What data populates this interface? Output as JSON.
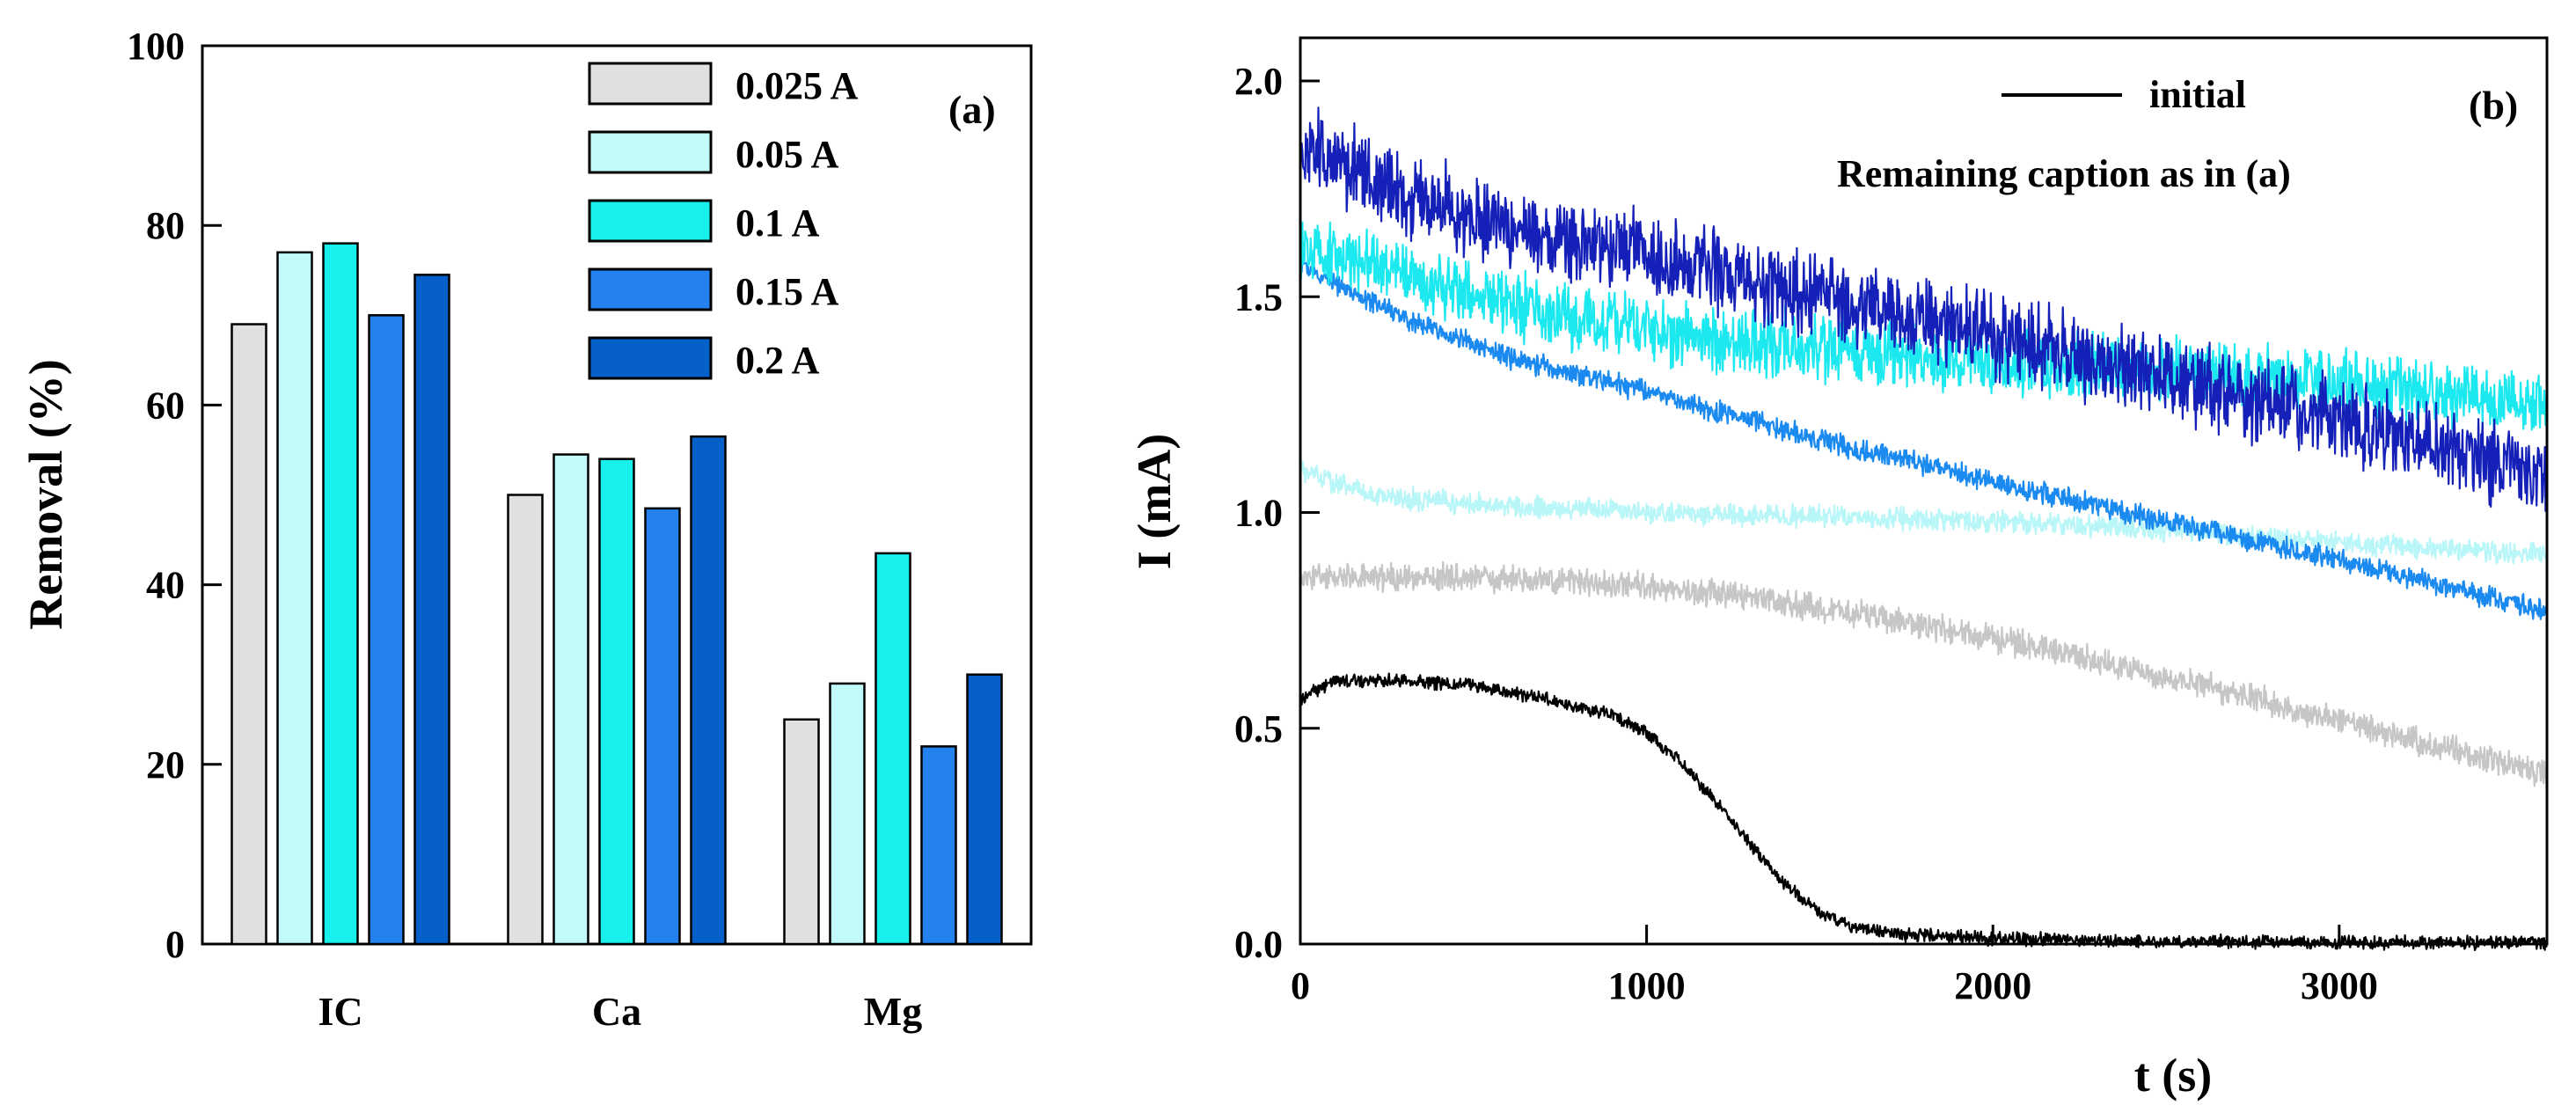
{
  "chart_data": [
    {
      "type": "bar",
      "panel_label": "(a)",
      "categories": [
        "IC",
        "Ca",
        "Mg"
      ],
      "series": [
        {
          "name": "0.025 A",
          "color": "#e0e0e0",
          "values": [
            69,
            50,
            25
          ]
        },
        {
          "name": "0.05 A",
          "color": "#c2fafa",
          "values": [
            77,
            54.5,
            29
          ]
        },
        {
          "name": "0.1 A",
          "color": "#18f0ec",
          "values": [
            78,
            54,
            43.5
          ]
        },
        {
          "name": "0.15 A",
          "color": "#2382ee",
          "values": [
            70,
            48.5,
            22
          ]
        },
        {
          "name": "0.2 A",
          "color": "#0561c9",
          "values": [
            74.5,
            56.5,
            30
          ]
        }
      ],
      "xlabel": "",
      "ylabel": "Removal (%)",
      "ylim": [
        0,
        100
      ],
      "yticks": [
        "0",
        "20",
        "40",
        "60",
        "80",
        "100"
      ],
      "legend_position": "top-right"
    },
    {
      "type": "line",
      "panel_label": "(b)",
      "xlabel": "t (s)",
      "ylabel": "I (mA)",
      "xlim": [
        0,
        3600
      ],
      "ylim": [
        0,
        2.1
      ],
      "xticks": [
        "0",
        "1000",
        "2000",
        "3000"
      ],
      "yticks": [
        "0.0",
        "0.5",
        "1.0",
        "1.5",
        "2.0"
      ],
      "legend": {
        "initial_label": "initial",
        "note": "Remaining caption as in (a)"
      },
      "series": [
        {
          "name": "initial",
          "color": "#000000",
          "noise": 0.012,
          "x": [
            0,
            100,
            300,
            500,
            700,
            900,
            1000,
            1100,
            1200,
            1300,
            1400,
            1500,
            1600,
            1700,
            1800,
            2000,
            2500,
            3000,
            3600
          ],
          "y": [
            0.57,
            0.61,
            0.61,
            0.6,
            0.57,
            0.53,
            0.49,
            0.42,
            0.33,
            0.23,
            0.14,
            0.07,
            0.04,
            0.025,
            0.02,
            0.012,
            0.006,
            0.004,
            0.003
          ]
        },
        {
          "name": "0.025 A",
          "color": "#c6c6c6",
          "noise": 0.025,
          "x": [
            0,
            500,
            1000,
            1500,
            2000,
            2500,
            3000,
            3600
          ],
          "y": [
            0.85,
            0.85,
            0.83,
            0.78,
            0.71,
            0.62,
            0.52,
            0.39
          ]
        },
        {
          "name": "0.05 A",
          "color": "#b8f6f8",
          "noise": 0.02,
          "x": [
            0,
            200,
            500,
            1000,
            1500,
            2000,
            2500,
            3000,
            3600
          ],
          "y": [
            1.1,
            1.04,
            1.02,
            1.0,
            0.99,
            0.98,
            0.96,
            0.93,
            0.9
          ]
        },
        {
          "name": "0.1 A",
          "color": "#1ce8f0",
          "noise": 0.06,
          "x": [
            0,
            200,
            500,
            1000,
            1500,
            2000,
            2500,
            3000,
            3600
          ],
          "y": [
            1.62,
            1.58,
            1.5,
            1.42,
            1.38,
            1.35,
            1.33,
            1.3,
            1.25
          ]
        },
        {
          "name": "0.15 A",
          "color": "#1a8af0",
          "noise": 0.02,
          "x": [
            0,
            300,
            600,
            1000,
            1500,
            2000,
            2500,
            3000,
            3600
          ],
          "y": [
            1.57,
            1.45,
            1.36,
            1.28,
            1.17,
            1.07,
            0.98,
            0.89,
            0.77
          ]
        },
        {
          "name": "0.2 A",
          "color": "#1420b8",
          "noise": 0.075,
          "x": [
            0,
            100,
            300,
            600,
            1000,
            1500,
            2000,
            2500,
            3000,
            3600
          ],
          "y": [
            1.85,
            1.82,
            1.74,
            1.66,
            1.6,
            1.5,
            1.41,
            1.31,
            1.22,
            1.08
          ]
        }
      ]
    }
  ]
}
